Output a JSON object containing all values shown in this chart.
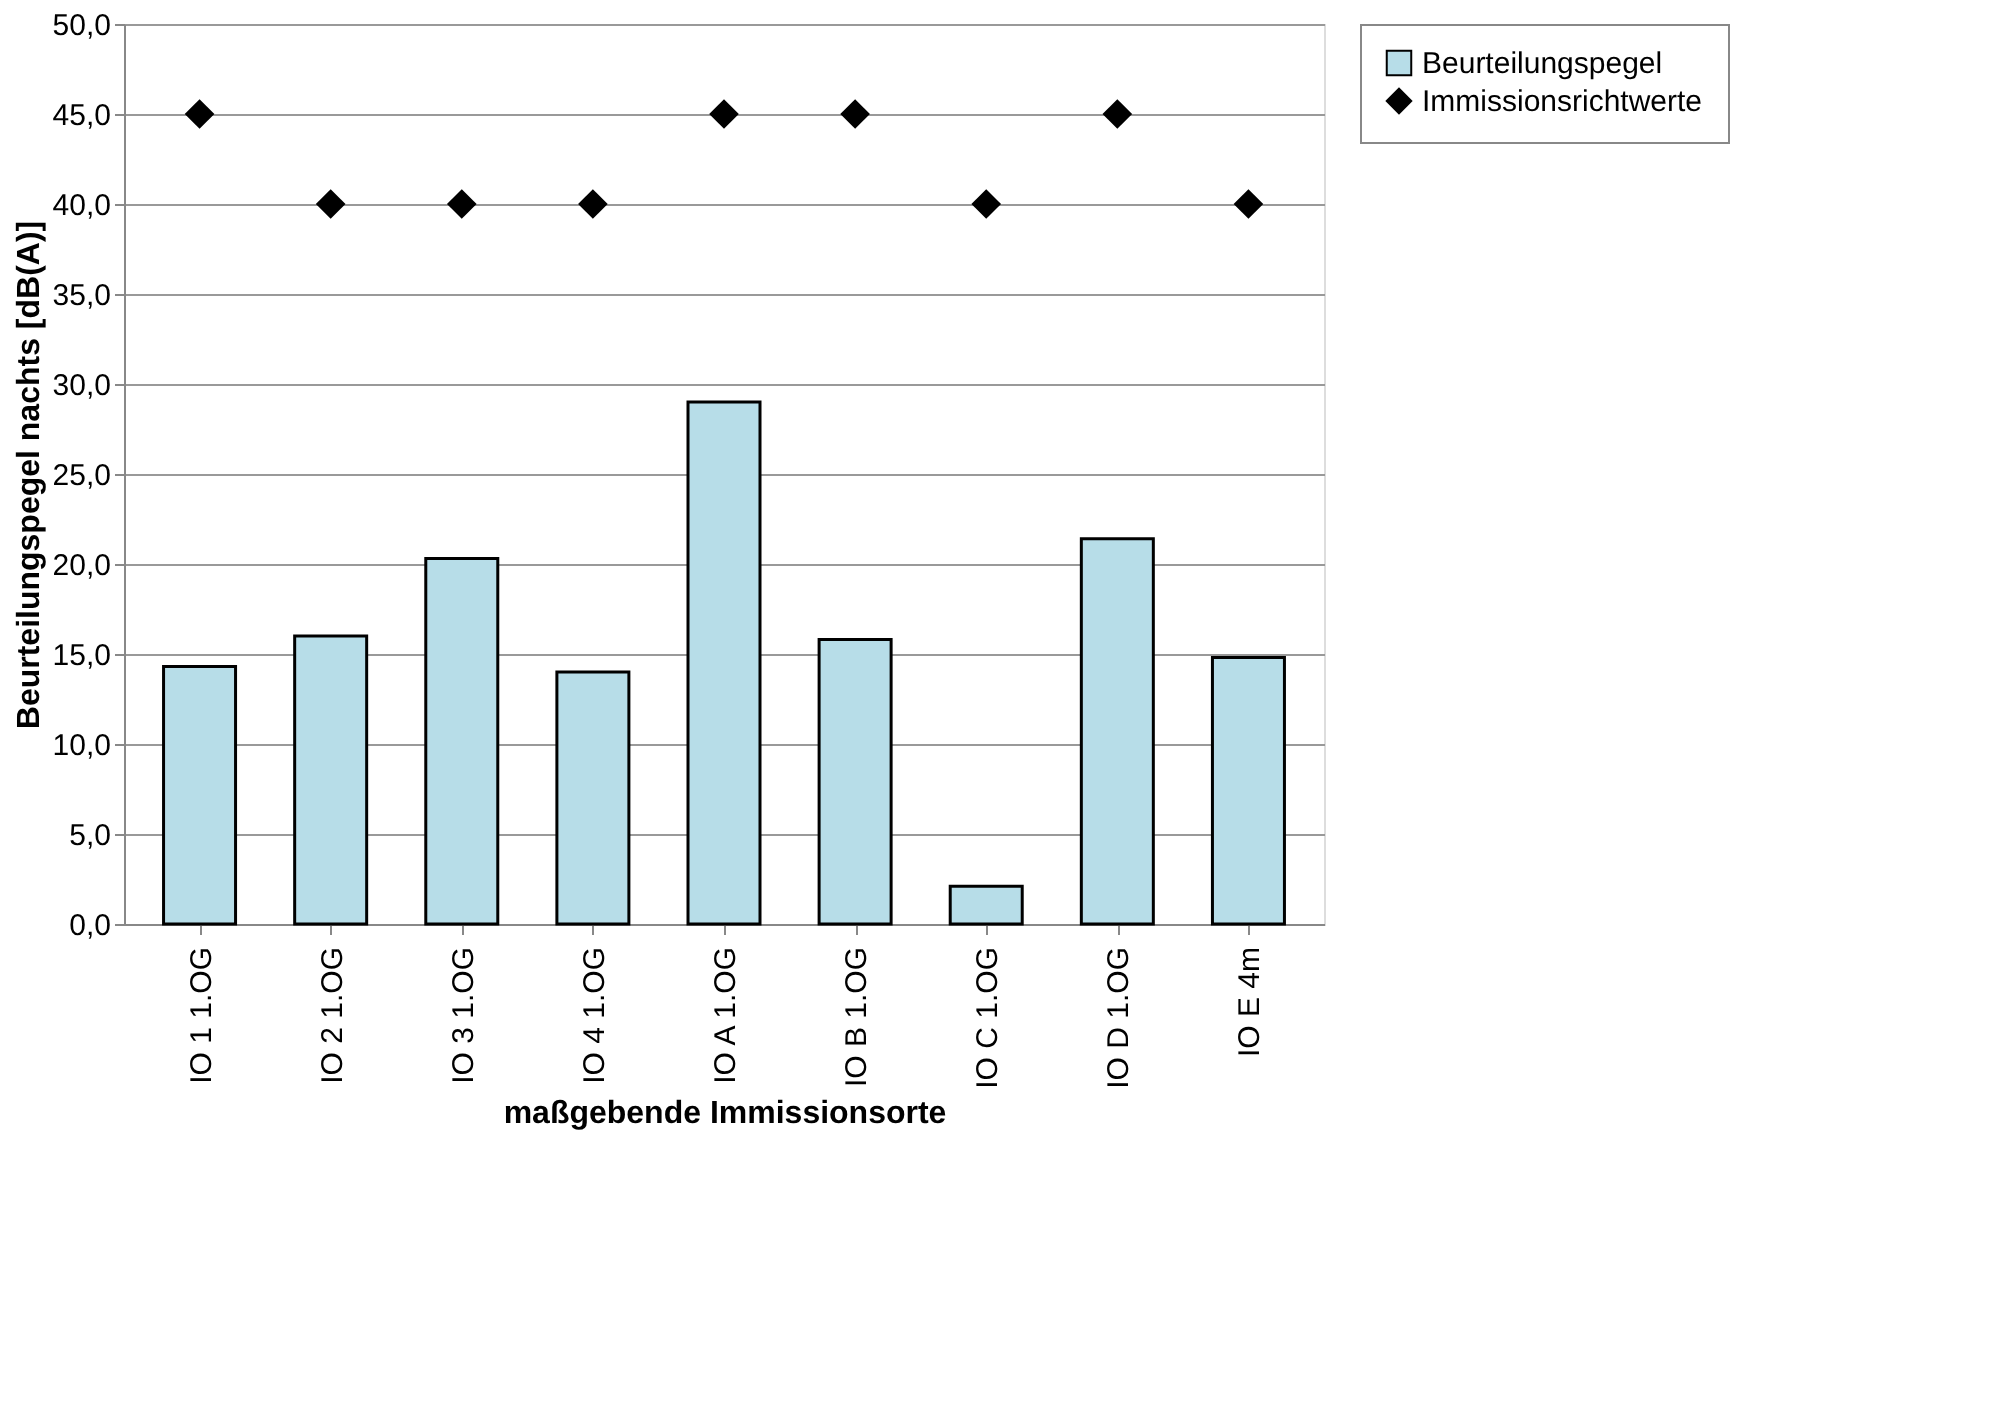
{
  "chart_data": {
    "type": "bar",
    "xlabel": "maßgebende Immissionsorte",
    "ylabel": "Beurteilungspegel nachts [dB(A)]",
    "categories": [
      "IO 1 1.OG",
      "IO 2 1.OG",
      "IO 3 1.OG",
      "IO 4 1.OG",
      "IO A 1.OG",
      "IO B 1.OG",
      "IO C 1.OG",
      "IO D 1.OG",
      "IO E 4m"
    ],
    "series": [
      {
        "name": "Beurteilungspegel",
        "color": "#b7dde8",
        "values": [
          14.3,
          16.0,
          20.3,
          14.0,
          29.0,
          15.8,
          2.1,
          21.4,
          14.8
        ]
      },
      {
        "name": "Immissionsrichtwerte",
        "type": "scatter",
        "marker": "diamond",
        "color": "#000000",
        "values": [
          45,
          40,
          40,
          40,
          45,
          45,
          40,
          45,
          40
        ]
      }
    ],
    "ylim": [
      0,
      50
    ],
    "yticks": [
      {
        "value": 0,
        "label": "0,0"
      },
      {
        "value": 5,
        "label": "5,0"
      },
      {
        "value": 10,
        "label": "10,0"
      },
      {
        "value": 15,
        "label": "15,0"
      },
      {
        "value": 20,
        "label": "20,0"
      },
      {
        "value": 25,
        "label": "25,0"
      },
      {
        "value": 30,
        "label": "30,0"
      },
      {
        "value": 35,
        "label": "35,0"
      },
      {
        "value": 40,
        "label": "40,0"
      },
      {
        "value": 45,
        "label": "45,0"
      },
      {
        "value": 50,
        "label": "50,0"
      }
    ],
    "grid": "y",
    "legend": "right"
  }
}
